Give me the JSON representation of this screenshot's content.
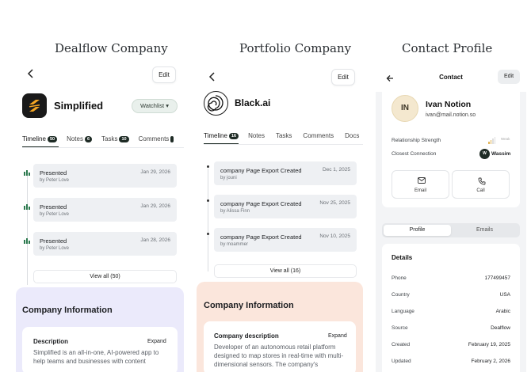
{
  "headings": {
    "dealflow": "Dealflow Company",
    "portfolio": "Portfolio Company",
    "contact": "Contact Profile"
  },
  "dealflow": {
    "edit_label": "Edit",
    "company_name": "Simplified",
    "watchlist_label": "Watchlist",
    "tabs": [
      {
        "label": "Timeline",
        "count": "50"
      },
      {
        "label": "Notes",
        "count": "6"
      },
      {
        "label": "Tasks",
        "count": "10"
      },
      {
        "label": "Comments",
        "count": ""
      }
    ],
    "timeline": [
      {
        "title": "Presented",
        "date": "Jan 29, 2026",
        "by": "by Peter Love"
      },
      {
        "title": "Presented",
        "date": "Jan 29, 2026",
        "by": "by Peter Love"
      },
      {
        "title": "Presented",
        "date": "Jan 28, 2026",
        "by": "by Peter Love"
      }
    ],
    "view_all": "View all (50)",
    "info_title": "Company Information",
    "description_label": "Description",
    "expand_label": "Expand",
    "description_text": "Simplified is an all-in-one, AI-powered app to help teams and businesses with content",
    "band_color": "#ebeafb"
  },
  "portfolio": {
    "edit_label": "Edit",
    "company_name": "Black.ai",
    "tabs": [
      {
        "label": "Timeline",
        "count": "16"
      },
      {
        "label": "Notes",
        "count": ""
      },
      {
        "label": "Tasks",
        "count": ""
      },
      {
        "label": "Comments",
        "count": ""
      },
      {
        "label": "Docs",
        "count": ""
      }
    ],
    "timeline": [
      {
        "title": "company Page Export Created",
        "date": "Dec 1, 2025",
        "by": "by jouni"
      },
      {
        "title": "company Page Export Created",
        "date": "Nov 25, 2025",
        "by": "by Alissa Finn"
      },
      {
        "title": "company Page Export Created",
        "date": "Nov 10, 2025",
        "by": "by moammer"
      }
    ],
    "view_all": "View all (16)",
    "info_title": "Company Information",
    "description_label": "Company description",
    "expand_label": "Expand",
    "description_text": "Developer of an autonomous retail platform designed to map stores in real-time with multi-dimensional sensors. The company's",
    "band_color": "#fbe6dc"
  },
  "contact": {
    "title": "Contact",
    "edit_label": "Edit",
    "initials": "IN",
    "name": "Ivan Notion",
    "email": "ivan@mail.notion.so",
    "relationship_label": "Relationship Strength",
    "relationship_value": "Weak",
    "closest_label": "Closest Connection",
    "closest_initial": "W",
    "closest_name": "Wassim",
    "actions": [
      {
        "label": "Email",
        "icon": "mail-icon"
      },
      {
        "label": "Call",
        "icon": "phone-icon"
      }
    ],
    "segments": [
      {
        "label": "Profile",
        "active": true
      },
      {
        "label": "Emails",
        "active": false
      }
    ],
    "details_title": "Details",
    "details": [
      {
        "label": "Phone",
        "value": "177499457"
      },
      {
        "label": "Country",
        "value": "USA"
      },
      {
        "label": "Language",
        "value": "Arabic"
      },
      {
        "label": "Source",
        "value": "Dealflow"
      },
      {
        "label": "Created",
        "value": "February 19, 2025"
      },
      {
        "label": "Updated",
        "value": "February 2, 2026"
      }
    ]
  }
}
